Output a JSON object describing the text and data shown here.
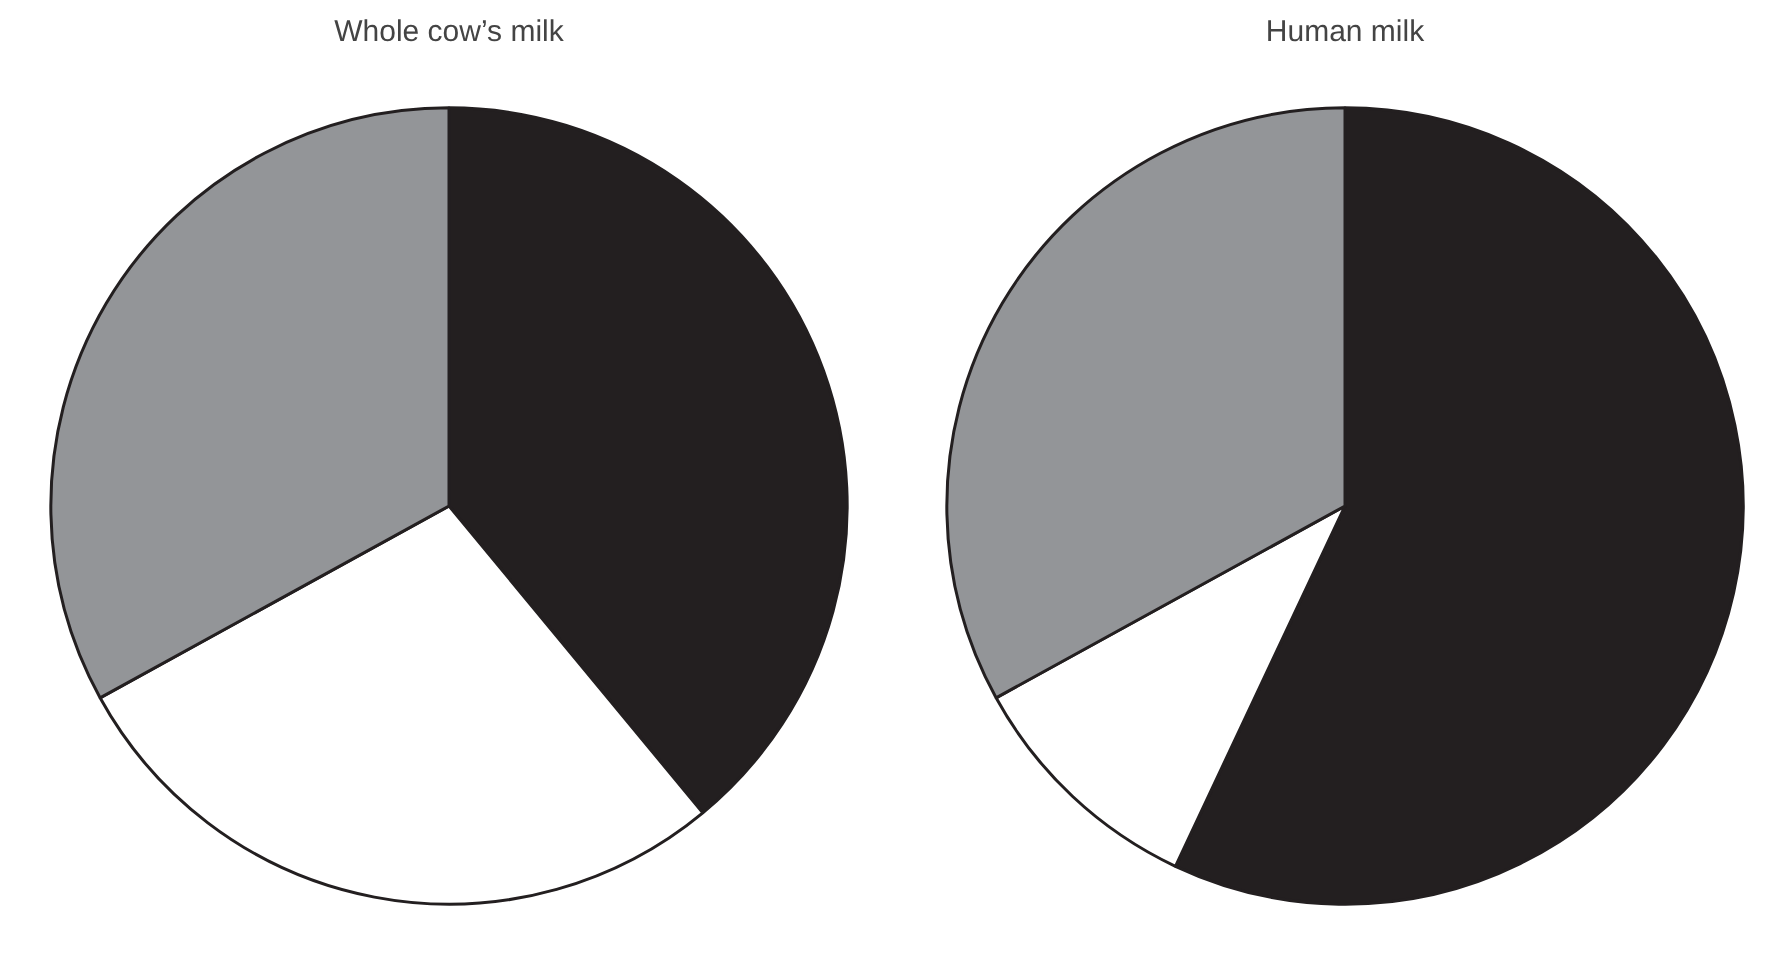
{
  "chart_data": [
    {
      "type": "pie",
      "title": "Whole cow’s milk",
      "categories": [
        null,
        null,
        null
      ],
      "values": [
        39,
        28,
        33
      ],
      "colors": [
        "#231f20",
        "#ffffff",
        "#939598"
      ]
    },
    {
      "type": "pie",
      "title": "Human milk",
      "categories": [
        null,
        null,
        null
      ],
      "values": [
        57,
        10,
        33
      ],
      "colors": [
        "#231f20",
        "#ffffff",
        "#939598"
      ]
    }
  ]
}
